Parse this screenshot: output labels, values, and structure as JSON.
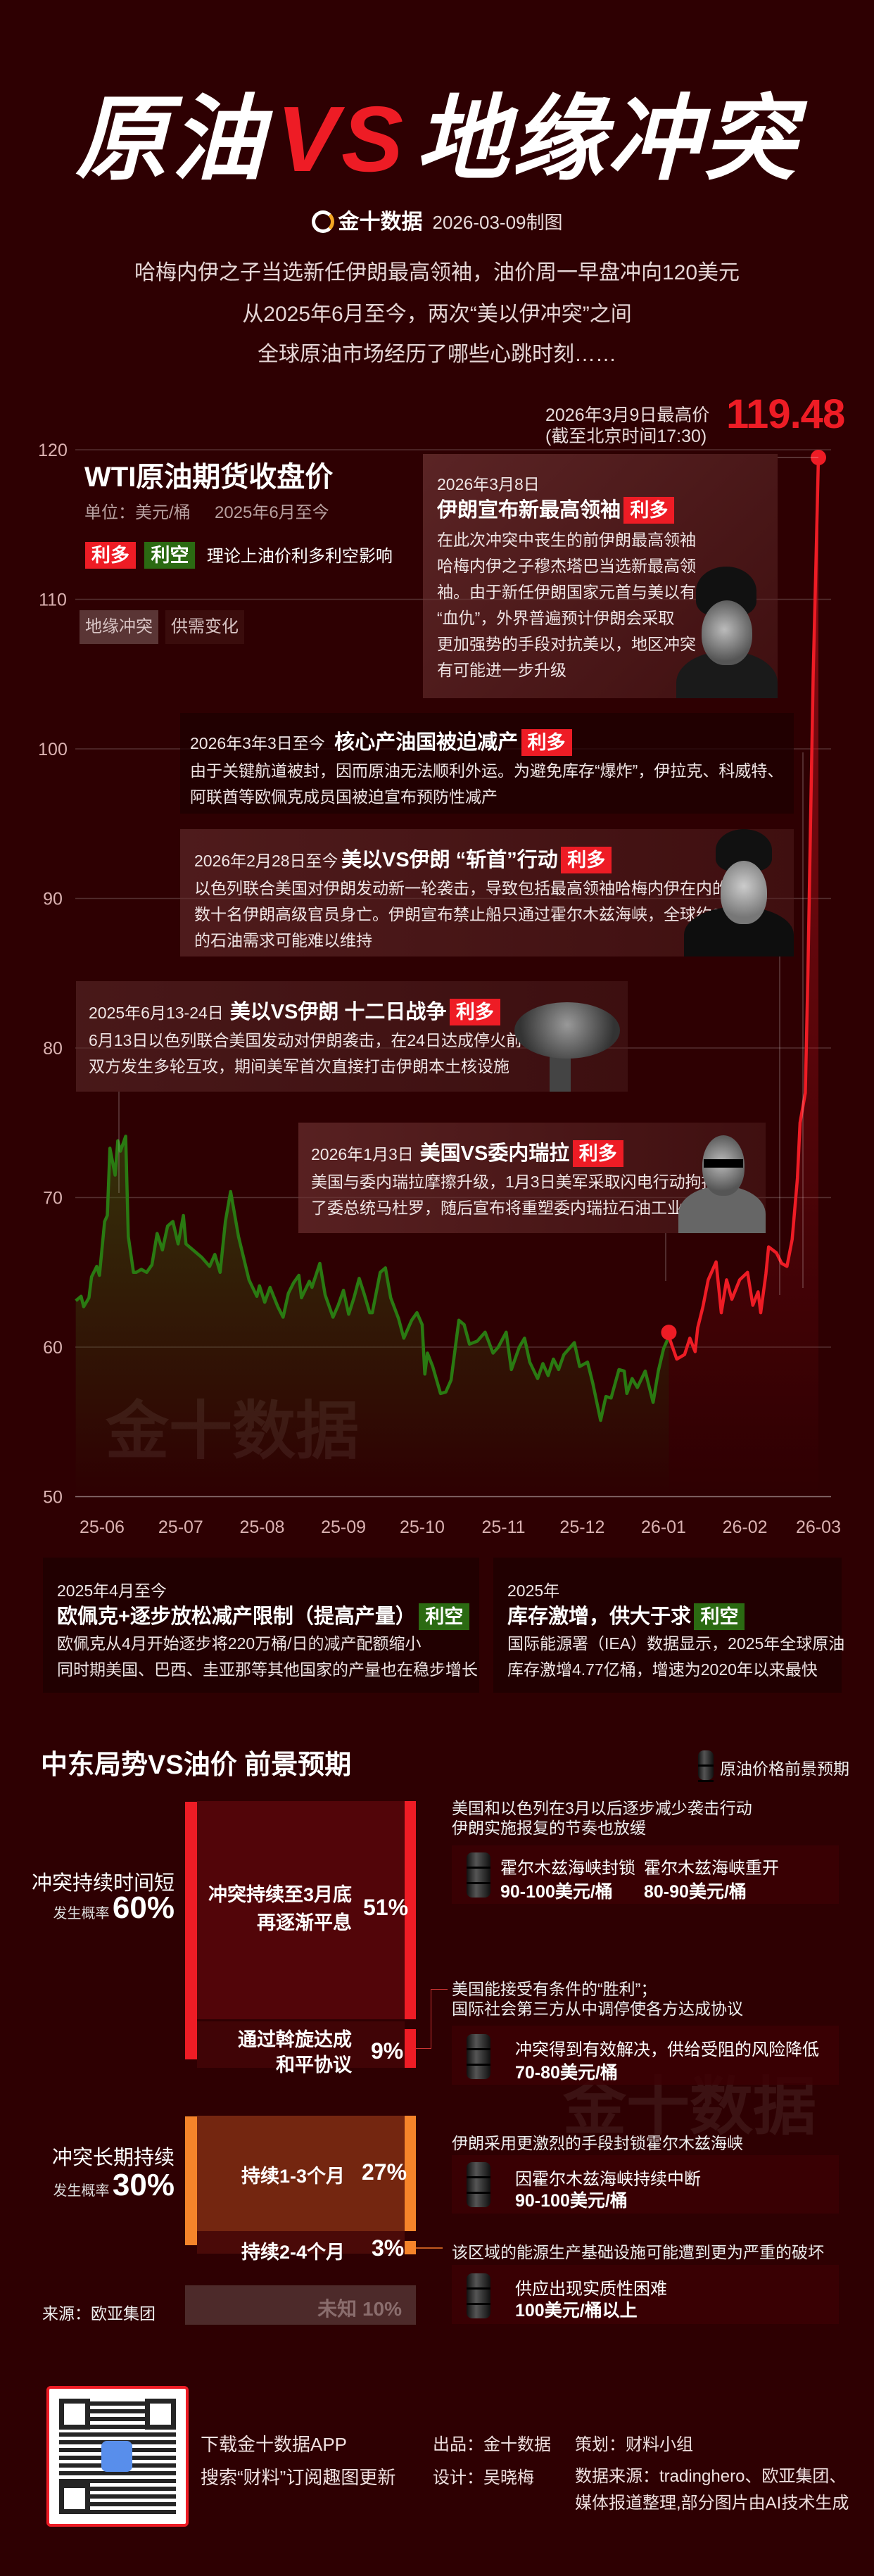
{
  "header": {
    "title_left": "原油",
    "title_vs": "VS",
    "title_right": "地缘冲突",
    "brand": "金十数据",
    "date": "2026-03-09制图",
    "intro": [
      "哈梅内伊之子当选新任伊朗最高领袖，油价周一早盘冲向120美元",
      "从2025年6月至今，两次“美以伊冲突”之间",
      "全球原油市场经历了哪些心跳时刻……"
    ]
  },
  "peak": {
    "label": "2026年3月9日最高价",
    "note": "(截至北京时间17:30)",
    "value": "119.48"
  },
  "chart_info": {
    "title": "WTI原油期货收盘价",
    "unit": "单位：美元/桶",
    "period": "2025年6月至今",
    "legend": {
      "bull": "利多",
      "bear": "利空",
      "desc": "理论上油价利多利空影响"
    },
    "filters": [
      "地缘冲突",
      "供需变化"
    ],
    "watermark": "金十数据"
  },
  "events": [
    {
      "date": "2026年3月8日",
      "title": "伊朗宣布新最高领袖",
      "tag": "利多",
      "body": [
        "在此次冲突中丧生的前伊朗最高领袖",
        "哈梅内伊之子穆杰塔巴当选新最高领",
        "袖。由于新任伊朗国家元首与美以有",
        "“血仇”，外界普遍预计伊朗会采取",
        "更加强势的手段对抗美以，地区冲突",
        "有可能进一步升级"
      ]
    },
    {
      "date": "2026年3年3日至今",
      "title": "核心产油国被迫减产",
      "tag": "利多",
      "body": [
        "由于关键航道被封，因而原油无法顺利外运。为避免库存“爆炸”，伊拉克、科威特、",
        "阿联酋等欧佩克成员国被迫宣布预防性减产"
      ]
    },
    {
      "date": "2026年2月28日至今",
      "title": "美以VS伊朗 “斩首”行动",
      "tag": "利多",
      "body": [
        "以色列联合美国对伊朗发动新一轮袭击，导致包括最高领袖哈梅内伊在内的",
        "数十名伊朗高级官员身亡。伊朗宣布禁止船只通过霍尔木兹海峡，全球约20%",
        "的石油需求可能难以维持"
      ]
    },
    {
      "date": "2025年6月13-24日",
      "title": "美以VS伊朗 十二日战争",
      "tag": "利多",
      "body": [
        "6月13日以色列联合美国发动对伊朗袭击，在24日达成停火前",
        "双方发生多轮互攻，期间美军首次直接打击伊朗本土核设施"
      ]
    },
    {
      "date": "2026年1月3日",
      "title": "美国VS委内瑞拉",
      "tag": "利多",
      "body": [
        "美国与委内瑞拉摩擦升级，1月3日美军采取闪电行动拘捕",
        "了委总统马杜罗，随后宣布将重塑委内瑞拉石油工业"
      ]
    }
  ],
  "bottom_events": [
    {
      "date": "2025年4月至今",
      "title": "欧佩克+逐步放松减产限制（提高产量）",
      "tag": "利空",
      "body": [
        "欧佩克从4月开始逐步将220万桶/日的减产配额缩小",
        "同时期美国、巴西、圭亚那等其他国家的产量也在稳步增长"
      ]
    },
    {
      "date": "2025年",
      "title": "库存激增，供大于求",
      "tag": "利空",
      "body": [
        "国际能源署（IEA）数据显示，2025年全球原油",
        "库存激增4.77亿桶，增速为2020年以来最快"
      ]
    }
  ],
  "outlook": {
    "title": "中东局势VS油价 前景预期",
    "legend": "原油价格前景预期",
    "prob_label": "发生概率",
    "short": {
      "label": "冲突持续时间短",
      "prob": "60%",
      "branches": [
        {
          "label": [
            "冲突持续至3月底",
            "再逐渐平息"
          ],
          "pct": "51%",
          "note": [
            "美国和以色列在3月以后逐步减少袭击行动",
            "伊朗实施报复的节奏也放缓"
          ],
          "prices": [
            {
              "scenario": "霍尔木兹海峡封锁",
              "price": "90-100美元/桶"
            },
            {
              "scenario": "霍尔木兹海峡重开",
              "price": "80-90美元/桶"
            }
          ]
        },
        {
          "label": [
            "通过斡旋达成",
            "和平协议"
          ],
          "pct": "9%",
          "note": [
            "美国能接受有条件的“胜利”；",
            "国际社会第三方从中调停使各方达成协议"
          ],
          "prices": [
            {
              "scenario": "冲突得到有效解决，供给受阻的风险降低",
              "price": "70-80美元/桶"
            }
          ]
        }
      ]
    },
    "long": {
      "label": "冲突长期持续",
      "prob": "30%",
      "branches": [
        {
          "label": "持续1-3个月",
          "pct": "27%",
          "note": [
            "伊朗采用更激烈的手段封锁霍尔木兹海峡"
          ],
          "prices": [
            {
              "scenario": "因霍尔木兹海峡持续中断",
              "price": "90-100美元/桶"
            }
          ]
        },
        {
          "label": "持续2-4个月",
          "pct": "3%",
          "note": [
            "该区域的能源生产基础设施可能遭到更为严重的破坏"
          ],
          "prices": [
            {
              "scenario": "供应出现实质性困难",
              "price": "100美元/桶以上"
            }
          ]
        }
      ]
    },
    "unknown": {
      "label": "未知",
      "pct": "10%"
    },
    "source": "来源：欧亚集团"
  },
  "footer": {
    "app": "下载金十数据APP",
    "search": "搜索“财料”订阅趣图更新",
    "producer": "出品：金十数据",
    "designer": "设计：吴晓梅",
    "planner": "策划：财料小组",
    "sources": [
      "数据来源：tradinghero、欧亚集团、",
      "媒体报道整理,部分图片由AI技术生成"
    ]
  },
  "colors": {
    "background": "#2e0002",
    "bullish": "#ee1c25",
    "bearish": "#2b6a12",
    "line_before": "#2a7a12",
    "line_after": "#ee1c25",
    "long_conflict": "#f5842a",
    "unknown": "#4d2a2a"
  },
  "chart_data": {
    "type": "line",
    "title": "WTI原油期货收盘价",
    "ylabel": "单位：美元/桶",
    "ylim": [
      50,
      120
    ],
    "yticks": [
      50,
      60,
      70,
      80,
      90,
      100,
      110,
      120
    ],
    "xticks": [
      "25-06",
      "25-07",
      "25-08",
      "25-09",
      "25-10",
      "25-11",
      "25-12",
      "26-01",
      "26-02",
      "26-03"
    ],
    "grid": true,
    "highlight_from": "2026-01-03",
    "peak_label": "119.48",
    "series": [
      {
        "x": [
          "2025-05-22",
          "2025-05-24",
          "2025-05-25",
          "2025-05-27",
          "2025-05-28",
          "2025-05-30",
          "2025-05-31",
          "2025-06-02",
          "2025-06-03",
          "2025-06-04",
          "2025-06-06",
          "2025-06-07",
          "2025-06-08",
          "2025-06-10",
          "2025-06-11",
          "2025-06-13",
          "2025-06-14",
          "2025-06-16",
          "2025-06-18",
          "2025-06-20",
          "2025-06-22",
          "2025-06-24",
          "2025-06-26",
          "2025-06-28",
          "2025-06-30",
          "2025-07-02",
          "2025-07-03",
          "2025-07-05",
          "2025-07-09",
          "2025-07-12",
          "2025-07-14",
          "2025-07-16",
          "2025-07-18",
          "2025-07-20",
          "2025-07-21",
          "2025-07-23",
          "2025-07-27",
          "2025-07-30",
          "2025-07-31",
          "2025-08-02",
          "2025-08-04",
          "2025-08-07",
          "2025-08-09",
          "2025-08-11",
          "2025-08-13",
          "2025-08-15",
          "2025-08-16",
          "2025-08-19",
          "2025-08-20",
          "2025-08-23",
          "2025-08-25",
          "2025-08-28",
          "2025-08-30",
          "2025-09-01",
          "2025-09-03",
          "2025-09-05",
          "2025-09-07",
          "2025-09-09",
          "2025-09-11",
          "2025-09-12",
          "2025-09-15",
          "2025-09-17",
          "2025-09-19",
          "2025-09-22",
          "2025-09-24",
          "2025-09-27",
          "2025-09-29",
          "2025-10-01",
          "2025-10-02",
          "2025-10-03",
          "2025-10-05",
          "2025-10-08",
          "2025-10-10",
          "2025-10-12",
          "2025-10-15",
          "2025-10-17",
          "2025-10-19",
          "2025-10-22",
          "2025-10-25",
          "2025-10-28",
          "2025-10-30",
          "2025-11-02",
          "2025-11-04",
          "2025-11-07",
          "2025-11-09",
          "2025-11-11",
          "2025-11-14",
          "2025-11-16",
          "2025-11-18",
          "2025-11-20",
          "2025-11-22",
          "2025-11-24",
          "2025-11-28",
          "2025-11-30",
          "2025-12-03",
          "2025-12-05",
          "2025-12-08",
          "2025-12-10",
          "2025-12-12",
          "2025-12-15",
          "2025-12-17",
          "2025-12-18",
          "2025-12-20",
          "2025-12-22",
          "2025-12-25",
          "2025-12-28",
          "2025-12-30",
          "2026-01-01",
          "2026-01-03",
          "2026-01-06",
          "2026-01-09",
          "2026-01-11",
          "2026-01-13",
          "2026-01-14",
          "2026-01-16",
          "2026-01-18",
          "2026-01-21",
          "2026-01-23",
          "2026-01-25",
          "2026-01-27",
          "2026-01-30",
          "2026-02-02",
          "2026-02-04",
          "2026-02-06",
          "2026-02-07",
          "2026-02-09",
          "2026-02-10",
          "2026-02-13",
          "2026-02-15",
          "2026-02-17",
          "2026-02-19",
          "2026-02-21",
          "2026-02-22",
          "2026-02-24",
          "2026-02-25",
          "2026-02-26",
          "2026-02-27",
          "2026-02-28",
          "2026-03-01"
        ],
        "y": [
          63.1,
          63.4,
          62.7,
          63.3,
          64.7,
          65.4,
          64.8,
          68.4,
          68.8,
          73.3,
          71.5,
          73.8,
          73.1,
          74.1,
          67.4,
          65.0,
          65.0,
          65.2,
          65.0,
          65.5,
          67.6,
          66.5,
          68.1,
          68.4,
          66.9,
          68.8,
          66.9,
          66.6,
          66.0,
          65.4,
          66.2,
          65.0,
          68.4,
          70.4,
          69.4,
          67.4,
          64.5,
          63.4,
          64.1,
          63.0,
          64.0,
          62.7,
          62.0,
          63.6,
          64.3,
          64.8,
          63.3,
          64.4,
          64.0,
          65.6,
          63.5,
          62.0,
          62.8,
          63.8,
          62.2,
          63.3,
          64.6,
          63.5,
          62.3,
          62.3,
          65.0,
          65.3,
          63.3,
          61.9,
          60.6,
          61.8,
          62.3,
          61.5,
          58.2,
          59.6,
          58.7,
          56.9,
          57.0,
          57.8,
          61.8,
          61.5,
          60.2,
          60.4,
          61.0,
          59.6,
          60.0,
          61.0,
          58.5,
          60.0,
          60.6,
          59.0,
          57.9,
          58.9,
          58.1,
          59.2,
          58.5,
          59.5,
          60.3,
          58.7,
          59.0,
          57.6,
          55.1,
          56.7,
          56.6,
          58.5,
          58.4,
          56.9,
          57.9,
          57.3,
          58.4,
          56.3,
          58.4,
          59.9,
          60.7,
          59.2,
          59.5,
          60.6,
          59.7,
          61.3,
          62.7,
          64.5,
          65.7,
          62.3,
          64.5,
          63.2,
          64.5,
          65.0,
          62.8,
          63.7,
          62.3,
          64.9,
          66.7,
          66.3,
          65.6,
          65.4,
          67.2,
          71.3,
          75.0,
          77.0,
          85.0,
          95.0,
          105.0,
          112.0,
          119.48
        ]
      }
    ]
  }
}
